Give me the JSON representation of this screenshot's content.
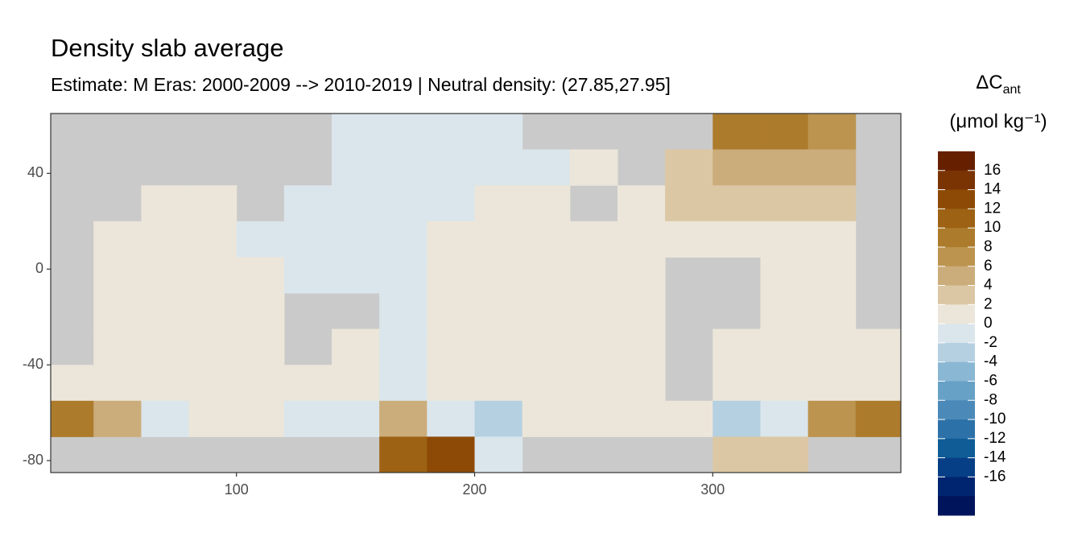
{
  "chart_data": {
    "type": "raster-map",
    "title": "Density slab average",
    "subtitle": "Estimate: M Eras: 2000-2009 --> 2010-2019 | Neutral density: (27.85,27.95]",
    "legend": {
      "title_main": "ΔC",
      "title_sub": "ant",
      "title_unit": "(μmol kg⁻¹)",
      "breaks": [
        16,
        14,
        12,
        10,
        8,
        6,
        4,
        2,
        0,
        -2,
        -4,
        -6,
        -8,
        -10,
        -12,
        -14,
        -16
      ],
      "colors": [
        "#662000",
        "#7a3303",
        "#8d4a06",
        "#9d6214",
        "#ad7b2c",
        "#bc944f",
        "#cbad7b",
        "#dbc7a4",
        "#ece6da",
        "#dbe6ec",
        "#b5d0e1",
        "#8ab7d3",
        "#68a1c6",
        "#4b8ab8",
        "#2c72a8",
        "#0f5c97",
        "#073f86",
        "#002570",
        "#00145c"
      ]
    },
    "land_color": "#cacaca",
    "xlim": [
      22,
      379
    ],
    "ylim": [
      -85,
      65
    ],
    "xticks": [
      100,
      200,
      300
    ],
    "yticks": [
      40,
      0,
      -40,
      -80
    ],
    "x": [
      30,
      50,
      70,
      90,
      110,
      130,
      150,
      170,
      190,
      210,
      230,
      250,
      270,
      290,
      310,
      330,
      350,
      370
    ],
    "y": [
      57.5,
      42.5,
      27.5,
      12.5,
      -2.5,
      -17.5,
      -32.5,
      -47.5,
      -62.5,
      -77.5
    ],
    "z": [
      [
        null,
        null,
        null,
        null,
        null,
        null,
        -1,
        -1,
        -1,
        -1,
        null,
        null,
        null,
        null,
        8,
        8,
        6,
        null
      ],
      [
        null,
        null,
        null,
        null,
        null,
        null,
        -1,
        -1,
        -1,
        -1,
        -1,
        0.5,
        null,
        3,
        5,
        4,
        4,
        null
      ],
      [
        null,
        null,
        0.5,
        0.5,
        null,
        -1,
        -1,
        -1,
        -1,
        0.5,
        0.5,
        null,
        0.5,
        2,
        3,
        3,
        2,
        null
      ],
      [
        null,
        0.5,
        0.5,
        0.5,
        -1,
        -1,
        -1,
        -1,
        0.5,
        0.5,
        0.5,
        0.5,
        0.5,
        0.5,
        1,
        1,
        1,
        null
      ],
      [
        null,
        0.5,
        0.5,
        0.5,
        0.5,
        -1,
        -1,
        -1,
        0.5,
        0.5,
        0.5,
        0.5,
        0.5,
        null,
        null,
        0.5,
        0.5,
        null
      ],
      [
        null,
        0.5,
        0.5,
        0.5,
        0.5,
        null,
        null,
        -1,
        0.5,
        0.5,
        0.5,
        0.5,
        0.5,
        null,
        null,
        0.5,
        0.5,
        null
      ],
      [
        null,
        0.5,
        0.5,
        0.5,
        0.5,
        null,
        0.5,
        -1,
        0.5,
        0.5,
        0.5,
        0.5,
        0.5,
        null,
        0.5,
        0.5,
        0.5,
        0.5
      ],
      [
        0.5,
        0.5,
        0.5,
        0.5,
        0.5,
        0.5,
        0.5,
        -1,
        0.5,
        0.5,
        0.5,
        0.5,
        0.5,
        null,
        0.5,
        0.5,
        0.5,
        0.5
      ],
      [
        8,
        4,
        -1,
        0.5,
        0.5,
        -1,
        -1,
        4,
        -1,
        -3,
        0.5,
        0.5,
        0.5,
        0.5,
        -3,
        -2,
        6,
        8
      ],
      [
        null,
        null,
        null,
        null,
        null,
        null,
        null,
        10,
        12,
        -1,
        null,
        null,
        null,
        null,
        3,
        3,
        null,
        null
      ]
    ]
  }
}
